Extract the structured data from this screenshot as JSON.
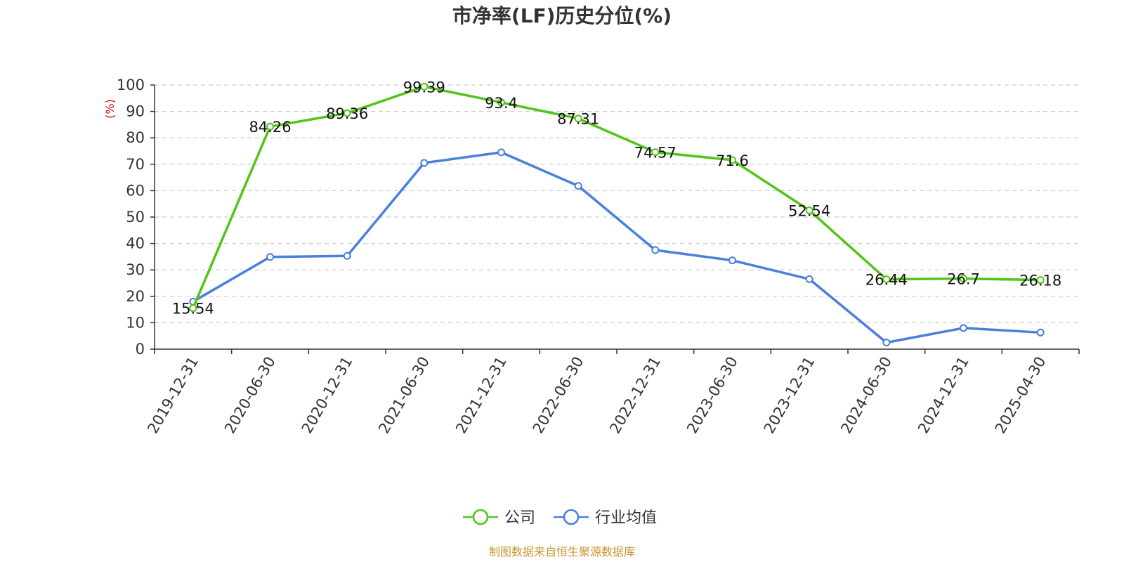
{
  "source_note": "制图数据来自恒生聚源数据库",
  "colors": {
    "company": "#52c41a",
    "industry": "#4a7fdb",
    "source": "#c9952b",
    "ylabel": "#e60000"
  },
  "chart_data": {
    "type": "line",
    "title": "市净率(LF)历史分位(%)",
    "ylabel": "(%)",
    "xlabel": "",
    "ylim": [
      0,
      100
    ],
    "yticks": [
      0,
      10,
      20,
      30,
      40,
      50,
      60,
      70,
      80,
      90,
      100
    ],
    "grid": true,
    "legend_position": "bottom",
    "categories": [
      "2019-12-31",
      "2020-06-30",
      "2020-12-31",
      "2021-06-30",
      "2021-12-31",
      "2022-06-30",
      "2022-12-31",
      "2023-06-30",
      "2023-12-31",
      "2024-06-30",
      "2024-12-31",
      "2025-04-30"
    ],
    "series": [
      {
        "name": "公司",
        "values": [
          15.54,
          84.26,
          89.36,
          99.39,
          93.4,
          87.31,
          74.57,
          71.6,
          52.54,
          26.44,
          26.7,
          26.18
        ],
        "labels": [
          "15.54",
          "84.26",
          "89.36",
          "99.39",
          "93.4",
          "87.31",
          "74.57",
          "71.6",
          "52.54",
          "26.44",
          "26.7",
          "26.18"
        ]
      },
      {
        "name": "行业均值",
        "values": [
          18.0,
          34.9,
          35.3,
          70.5,
          74.5,
          61.8,
          37.5,
          33.6,
          26.5,
          2.5,
          8.0,
          6.3
        ]
      }
    ]
  }
}
